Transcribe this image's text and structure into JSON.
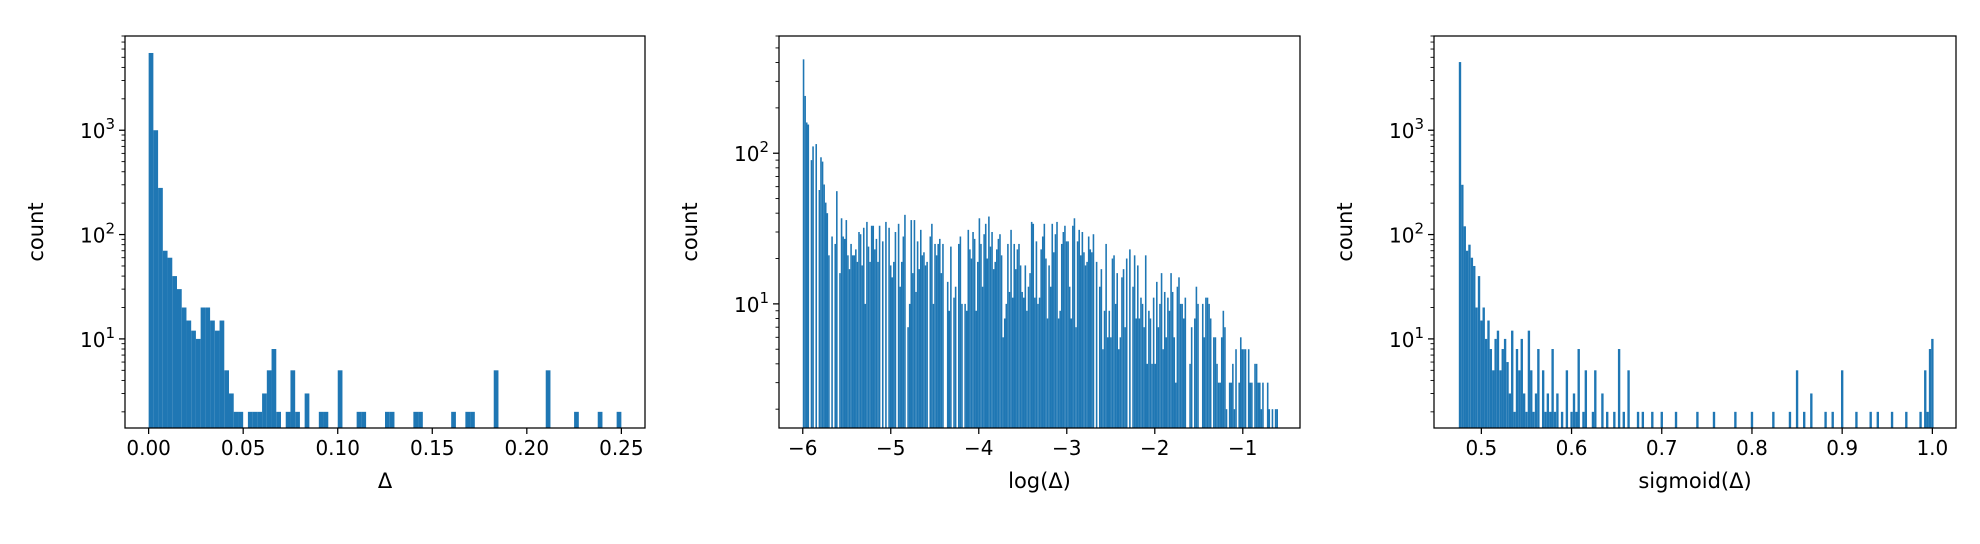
{
  "colors": {
    "bar": "#1f77b4",
    "axis": "#000000",
    "background": "#ffffff"
  },
  "chart_data": [
    {
      "type": "bar",
      "title": "",
      "xlabel": "Δ",
      "ylabel": "count",
      "yscale": "log",
      "grid": false,
      "xlim": [
        -0.0125,
        0.2625
      ],
      "ylim": [
        1.4,
        8000
      ],
      "xticks": [
        0.0,
        0.05,
        0.1,
        0.15,
        0.2,
        0.25
      ],
      "xtick_labels": [
        "0.00",
        "0.05",
        "0.10",
        "0.15",
        "0.20",
        "0.25"
      ],
      "yticks": [
        10,
        100,
        1000
      ],
      "ytick_labels": [
        "10^1",
        "10^2",
        "10^3"
      ],
      "bin_width": 0.0025,
      "x": [
        0.0,
        0.0025,
        0.005,
        0.0075,
        0.01,
        0.0125,
        0.015,
        0.0175,
        0.02,
        0.0225,
        0.025,
        0.0275,
        0.03,
        0.0325,
        0.035,
        0.0375,
        0.04,
        0.0425,
        0.045,
        0.0475,
        0.05,
        0.0525,
        0.055,
        0.0575,
        0.06,
        0.0625,
        0.065,
        0.0675,
        0.07,
        0.0725,
        0.075,
        0.0775,
        0.08,
        0.0825,
        0.085,
        0.0875,
        0.09,
        0.0925,
        0.095,
        0.1,
        0.1025,
        0.11,
        0.1125,
        0.1175,
        0.125,
        0.1275,
        0.1325,
        0.14,
        0.1425,
        0.1475,
        0.16,
        0.1675,
        0.17,
        0.1775,
        0.1825,
        0.1875,
        0.21,
        0.225,
        0.2375,
        0.2475
      ],
      "values": [
        5500,
        1000,
        280,
        70,
        60,
        40,
        30,
        20,
        15,
        12,
        10,
        20,
        20,
        15,
        12,
        15,
        5,
        3,
        2,
        2,
        1,
        2,
        2,
        2,
        3,
        5,
        8,
        2,
        1,
        2,
        5,
        2,
        1,
        3,
        1,
        1,
        2,
        2,
        1,
        5,
        1,
        2,
        2,
        1,
        2,
        2,
        1,
        2,
        2,
        1,
        2,
        2,
        2,
        1,
        5,
        1,
        5,
        2,
        2,
        2
      ]
    },
    {
      "type": "bar",
      "title": "",
      "xlabel": "log(Δ)",
      "ylabel": "count",
      "yscale": "log",
      "grid": false,
      "xlim": [
        -6.27,
        -0.35
      ],
      "ylim": [
        1.5,
        600
      ],
      "xticks": [
        -6,
        -5,
        -4,
        -3,
        -2,
        -1
      ],
      "xtick_labels": [
        "−6",
        "−5",
        "−4",
        "−3",
        "−2",
        "−1"
      ],
      "yticks": [
        10,
        100
      ],
      "ytick_labels": [
        "10^1",
        "10^2"
      ],
      "bin_width": 0.018,
      "x_range": [
        -6.0,
        -0.6
      ],
      "bins": 300,
      "distribution": "high counts near −6 decaying to about 25–35 through −3, dropping to 2–8 near −1"
    },
    {
      "type": "bar",
      "title": "",
      "xlabel": "sigmoid(Δ)",
      "ylabel": "count",
      "yscale": "log",
      "grid": false,
      "xlim": [
        0.4475,
        1.0262
      ],
      "ylim": [
        1.4,
        8000
      ],
      "xticks": [
        0.5,
        0.6,
        0.7,
        0.8,
        0.9,
        1.0
      ],
      "xtick_labels": [
        "0.5",
        "0.6",
        "0.7",
        "0.8",
        "0.9",
        "1.0"
      ],
      "yticks": [
        10,
        100,
        1000
      ],
      "ytick_labels": [
        "10^1",
        "10^2",
        "10^3"
      ],
      "bin_width": 0.00263,
      "x": [
        0.475,
        0.4776,
        0.4803,
        0.4829,
        0.4855,
        0.4882,
        0.4908,
        0.4934,
        0.4961,
        0.4987,
        0.5013,
        0.504,
        0.5066,
        0.5092,
        0.5119,
        0.5145,
        0.5171,
        0.5198,
        0.5224,
        0.525,
        0.5277,
        0.5303,
        0.5329,
        0.5356,
        0.5382,
        0.5408,
        0.5435,
        0.5461,
        0.5487,
        0.5514,
        0.554,
        0.5566,
        0.5593,
        0.5619,
        0.5645,
        0.5672,
        0.5698,
        0.5724,
        0.5751,
        0.5777,
        0.5803,
        0.583,
        0.5856,
        0.5882,
        0.5935,
        0.5961,
        0.5987,
        0.6014,
        0.604,
        0.6066,
        0.6119,
        0.6145,
        0.6171,
        0.6224,
        0.625,
        0.6303,
        0.6329,
        0.6382,
        0.6408,
        0.6461,
        0.6514,
        0.6566,
        0.6619,
        0.6672,
        0.6724,
        0.6777,
        0.683,
        0.6882,
        0.6935,
        0.6987,
        0.7066,
        0.7145,
        0.7224,
        0.7303,
        0.7382,
        0.7487,
        0.7566,
        0.7645,
        0.7724,
        0.7803,
        0.7882,
        0.7987,
        0.8066,
        0.8145,
        0.8224,
        0.8329,
        0.8408,
        0.8487,
        0.8566,
        0.8645,
        0.8724,
        0.8803,
        0.8882,
        0.8987,
        0.9066,
        0.9145,
        0.9224,
        0.9303,
        0.9382,
        0.9461,
        0.954,
        0.9619,
        0.9698,
        0.9777,
        0.9856,
        0.9908,
        0.9935,
        0.9961,
        0.9987
      ],
      "values": [
        4500,
        300,
        120,
        70,
        80,
        60,
        50,
        20,
        40,
        15,
        20,
        10,
        15,
        8,
        5,
        10,
        12,
        5,
        8,
        10,
        6,
        3,
        12,
        2,
        8,
        5,
        10,
        3,
        2,
        12,
        5,
        2,
        3,
        8,
        1,
        5,
        2,
        3,
        2,
        8,
        2,
        3,
        1,
        2,
        5,
        1,
        2,
        3,
        2,
        8,
        2,
        5,
        1,
        2,
        5,
        1,
        3,
        2,
        1,
        2,
        8,
        2,
        5,
        1,
        2,
        2,
        1,
        2,
        1,
        2,
        1,
        2,
        1,
        1,
        2,
        1,
        2,
        1,
        1,
        2,
        1,
        2,
        1,
        1,
        2,
        1,
        2,
        5,
        2,
        3,
        1,
        2,
        2,
        5,
        1,
        2,
        1,
        2,
        2,
        1,
        2,
        1,
        2,
        1,
        2,
        5,
        2,
        8,
        10
      ]
    }
  ]
}
